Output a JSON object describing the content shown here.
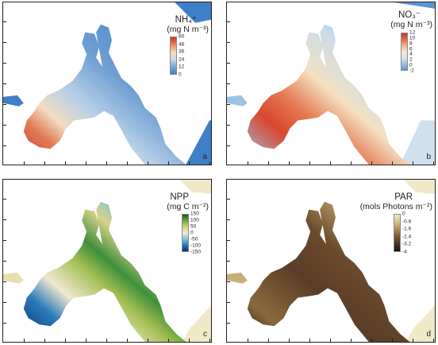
{
  "panels": [
    {
      "letter": "a",
      "title": "NH₄⁺",
      "units": "(mg N m⁻³)",
      "colorbar_ticks": [
        "60",
        "48",
        "36",
        "24",
        "12",
        "0"
      ],
      "colorbar_colors": [
        "#c8382a",
        "#e8845a",
        "#f2dcc0",
        "#cfdcea",
        "#7aa8d6",
        "#3f7fc7"
      ]
    },
    {
      "letter": "b",
      "title": "NO₃⁻",
      "units": "(mg N m⁻³)",
      "colorbar_ticks": [
        "12",
        "10",
        "8",
        "6",
        "4",
        "2",
        "0",
        "-2"
      ],
      "colorbar_colors": [
        "#c8382a",
        "#e26b4c",
        "#f0b48a",
        "#f3e6cc",
        "#dbe5ee",
        "#9cc0e0",
        "#5b93cf"
      ]
    },
    {
      "letter": "c",
      "title": "NPP",
      "units": "(mg C m⁻²)",
      "colorbar_ticks": [
        "150",
        "100",
        "50",
        "0",
        "-50",
        "-100",
        "-150"
      ],
      "colorbar_colors": [
        "#0b5f2a",
        "#6fa634",
        "#cfd27a",
        "#f3ead0",
        "#7fc3e6",
        "#2a7bbb",
        "#0b2e6b"
      ]
    },
    {
      "letter": "d",
      "title": "PAR",
      "units": "(mols Photons m⁻²)",
      "colorbar_ticks": [
        "0",
        "-0.8",
        "-1.6",
        "-2.4",
        "-3.2",
        "-4"
      ],
      "colorbar_colors": [
        "#efe8c8",
        "#d8c38f",
        "#b08a52",
        "#7a5530",
        "#4a3322",
        "#1c140f"
      ]
    }
  ],
  "colors": {
    "land": "#efe9c8",
    "frame": "#231f20"
  }
}
